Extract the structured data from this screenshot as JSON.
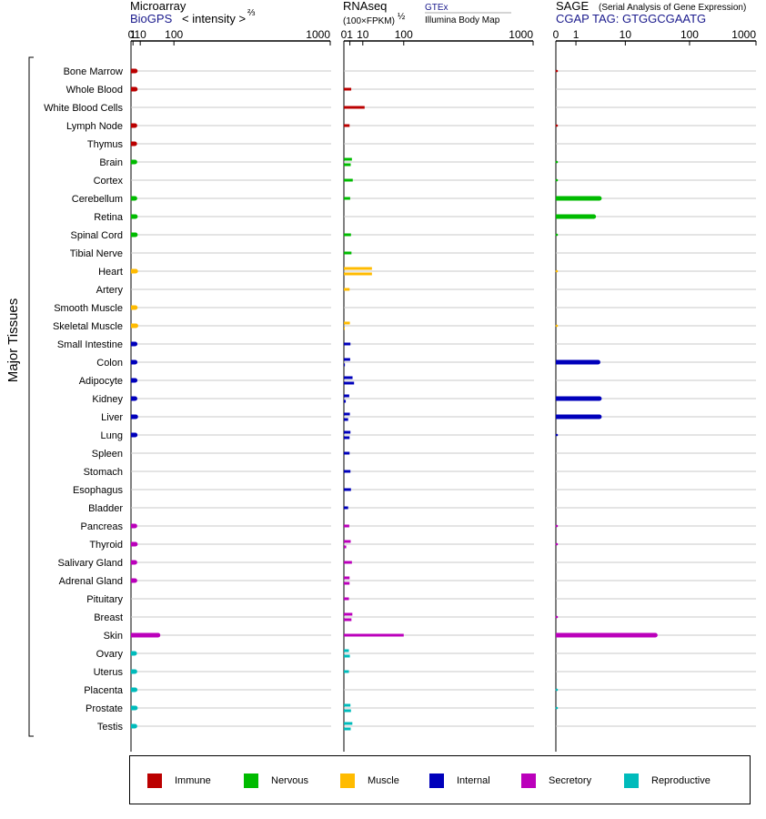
{
  "chart_data": {
    "type": "bar",
    "y_axis_label": "Major Tissues",
    "panels": [
      {
        "id": "microarray",
        "title": "Microarray",
        "source": "BioGPS",
        "unit_label": "< intensity >",
        "unit_power": "⅔",
        "ticks": [
          "0",
          "1",
          "10",
          "100",
          "1000"
        ],
        "scale": "power-2/3"
      },
      {
        "id": "rnaseq",
        "title": "RNAseq",
        "unit_label": "(100×FPKM)",
        "unit_power": "½",
        "source_1": "GTEx",
        "source_2": "Illumina Body Map",
        "ticks": [
          "0",
          "1",
          "10",
          "100",
          "1000"
        ],
        "scale": "power-1/2"
      },
      {
        "id": "sage",
        "title": "SAGE",
        "subtitle": "(Serial Analysis of Gene Expression)",
        "source": "CGAP TAG: GTGGCGAATG",
        "ticks": [
          "0",
          "1",
          "10",
          "100",
          "1000"
        ],
        "scale": "log"
      }
    ],
    "colors": {
      "Immune": "#bb0000",
      "Nervous": "#00bb00",
      "Muscle": "#ffbb00",
      "Internal": "#0000bb",
      "Secretory": "#bb00bb",
      "Reproductive": "#00bbbb"
    },
    "tissues": [
      {
        "name": "Bone Marrow",
        "group": "Immune",
        "microarray": 3.2,
        "rnaseq": [],
        "sage": 0.1
      },
      {
        "name": "Whole Blood",
        "group": "Immune",
        "microarray": 3.2,
        "rnaseq": [
          1.5
        ],
        "sage": 0
      },
      {
        "name": "White Blood Cells",
        "group": "Immune",
        "microarray": 0,
        "rnaseq": [
          12
        ],
        "sage": 0
      },
      {
        "name": "Lymph Node",
        "group": "Immune",
        "microarray": 2.8,
        "rnaseq": [
          0.9
        ],
        "sage": 0.1
      },
      {
        "name": "Thymus",
        "group": "Immune",
        "microarray": 2.6,
        "rnaseq": [],
        "sage": 0
      },
      {
        "name": "Brain",
        "group": "Nervous",
        "microarray": 2.8,
        "rnaseq": [
          1.8,
          1.3
        ],
        "sage": 0.1
      },
      {
        "name": "Cortex",
        "group": "Nervous",
        "microarray": 0,
        "rnaseq": [
          2.2
        ],
        "sage": 0.05
      },
      {
        "name": "Cerebellum",
        "group": "Nervous",
        "microarray": 2.8,
        "rnaseq": [
          1.1
        ],
        "sage": 3.5
      },
      {
        "name": "Retina",
        "group": "Nervous",
        "microarray": 3.3,
        "rnaseq": [],
        "sage": 2.7
      },
      {
        "name": "Spinal Cord",
        "group": "Nervous",
        "microarray": 3.3,
        "rnaseq": [
          1.4
        ],
        "sage": 0.1
      },
      {
        "name": "Tibial Nerve",
        "group": "Nervous",
        "microarray": 0,
        "rnaseq": [
          1.6
        ],
        "sage": 0
      },
      {
        "name": "Heart",
        "group": "Muscle",
        "microarray": 3.6,
        "rnaseq": [
          22,
          22
        ],
        "sage": 0.05
      },
      {
        "name": "Artery",
        "group": "Muscle",
        "microarray": 0,
        "rnaseq": [
          0.9
        ],
        "sage": 0
      },
      {
        "name": "Smooth Muscle",
        "group": "Muscle",
        "microarray": 3.2,
        "rnaseq": [],
        "sage": 0
      },
      {
        "name": "Skeletal Muscle",
        "group": "Muscle",
        "microarray": 3.9,
        "rnaseq": [
          1.0,
          0.02
        ],
        "sage": 0.05
      },
      {
        "name": "Small Intestine",
        "group": "Internal",
        "microarray": 3.0,
        "rnaseq": [
          1.2
        ],
        "sage": 0
      },
      {
        "name": "Colon",
        "group": "Internal",
        "microarray": 3.0,
        "rnaseq": [
          1.1,
          0.03
        ],
        "sage": 3.3
      },
      {
        "name": "Adipocyte",
        "group": "Internal",
        "microarray": 3.0,
        "rnaseq": [
          2.1,
          2.9
        ],
        "sage": 0
      },
      {
        "name": "Kidney",
        "group": "Internal",
        "microarray": 2.9,
        "rnaseq": [
          0.8,
          0.1
        ],
        "sage": 3.5
      },
      {
        "name": "Liver",
        "group": "Internal",
        "microarray": 3.7,
        "rnaseq": [
          1.0,
          0.5
        ],
        "sage": 3.5
      },
      {
        "name": "Lung",
        "group": "Internal",
        "microarray": 3.1,
        "rnaseq": [
          1.2,
          0.9
        ],
        "sage": 0.1
      },
      {
        "name": "Spleen",
        "group": "Internal",
        "microarray": 0,
        "rnaseq": [
          0.9
        ],
        "sage": 0
      },
      {
        "name": "Stomach",
        "group": "Internal",
        "microarray": 0,
        "rnaseq": [
          1.2
        ],
        "sage": 0
      },
      {
        "name": "Esophagus",
        "group": "Internal",
        "microarray": 0,
        "rnaseq": [
          1.4
        ],
        "sage": 0
      },
      {
        "name": "Bladder",
        "group": "Internal",
        "microarray": 0,
        "rnaseq": [
          0.5
        ],
        "sage": 0
      },
      {
        "name": "Pancreas",
        "group": "Secretory",
        "microarray": 2.8,
        "rnaseq": [
          0.8
        ],
        "sage": 0.1
      },
      {
        "name": "Thyroid",
        "group": "Secretory",
        "microarray": 3.3,
        "rnaseq": [
          1.3,
          0.15
        ],
        "sage": 0.1
      },
      {
        "name": "Salivary Gland",
        "group": "Secretory",
        "microarray": 2.8,
        "rnaseq": [
          1.8
        ],
        "sage": 0
      },
      {
        "name": "Adrenal Gland",
        "group": "Secretory",
        "microarray": 2.8,
        "rnaseq": [
          0.9,
          0.9
        ],
        "sage": 0
      },
      {
        "name": "Pituitary",
        "group": "Secretory",
        "microarray": 0,
        "rnaseq": [
          0.7
        ],
        "sage": 0
      },
      {
        "name": "Breast",
        "group": "Secretory",
        "microarray": 0,
        "rnaseq": [
          2.0,
          1.6
        ],
        "sage": 0.1
      },
      {
        "name": "Skin",
        "group": "Secretory",
        "microarray": 50,
        "rnaseq": [
          100
        ],
        "sage": 30
      },
      {
        "name": "Ovary",
        "group": "Reproductive",
        "microarray": 2.5,
        "rnaseq": [
          0.7,
          1.0
        ],
        "sage": 0
      },
      {
        "name": "Uterus",
        "group": "Reproductive",
        "microarray": 2.8,
        "rnaseq": [
          0.7
        ],
        "sage": 0
      },
      {
        "name": "Placenta",
        "group": "Reproductive",
        "microarray": 3.0,
        "rnaseq": [],
        "sage": 0.05
      },
      {
        "name": "Prostate",
        "group": "Reproductive",
        "microarray": 3.3,
        "rnaseq": [
          1.2,
          1.4
        ],
        "sage": 0.05
      },
      {
        "name": "Testis",
        "group": "Reproductive",
        "microarray": 2.8,
        "rnaseq": [
          2.0,
          1.3
        ],
        "sage": 0
      }
    ]
  },
  "legend": [
    {
      "label": "Immune",
      "color": "#bb0000"
    },
    {
      "label": "Nervous",
      "color": "#00bb00"
    },
    {
      "label": "Muscle",
      "color": "#ffbb00"
    },
    {
      "label": "Internal",
      "color": "#0000bb"
    },
    {
      "label": "Secretory",
      "color": "#bb00bb"
    },
    {
      "label": "Reproductive",
      "color": "#00bbbb"
    }
  ]
}
